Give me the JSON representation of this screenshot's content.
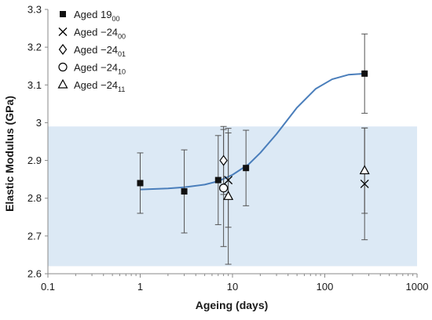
{
  "chart_data": {
    "type": "scatter",
    "xlabel": "Ageing (days)",
    "ylabel": "Elastic Modulus (GPa)",
    "xscale": "log",
    "xlim": [
      0.1,
      1000
    ],
    "ylim": [
      2.6,
      3.3
    ],
    "x_ticks": [
      "0.1",
      "1",
      "10",
      "100",
      "1000"
    ],
    "y_ticks": [
      "2.6",
      "2.7",
      "2.8",
      "2.9",
      "3",
      "3.1",
      "3.2",
      "3.3"
    ],
    "band": {
      "y_min": 2.62,
      "y_max": 2.99,
      "color": "#dce9f5"
    },
    "fit_curve": {
      "color": "#4a7ebb",
      "points": [
        [
          1,
          2.823
        ],
        [
          2,
          2.826
        ],
        [
          3,
          2.829
        ],
        [
          5,
          2.836
        ],
        [
          7,
          2.845
        ],
        [
          10,
          2.862
        ],
        [
          15,
          2.89
        ],
        [
          20,
          2.92
        ],
        [
          30,
          2.97
        ],
        [
          50,
          3.04
        ],
        [
          80,
          3.09
        ],
        [
          120,
          3.115
        ],
        [
          180,
          3.127
        ],
        [
          270,
          3.13
        ]
      ]
    },
    "legend_position": "top-left",
    "series": [
      {
        "name": "Aged 19",
        "subscript": "00",
        "marker": "square",
        "points": [
          {
            "x": 1,
            "y": 2.84,
            "err": 0.08
          },
          {
            "x": 3,
            "y": 2.818,
            "err": 0.11
          },
          {
            "x": 7,
            "y": 2.848,
            "err": 0.118
          },
          {
            "x": 14,
            "y": 2.88,
            "err": 0.1
          },
          {
            "x": 270,
            "y": 3.13,
            "err": 0.105
          }
        ]
      },
      {
        "name": "Aged −24",
        "subscript": "00",
        "marker": "x",
        "points": [
          {
            "x": 9,
            "y": 2.848,
            "err": 0.125
          },
          {
            "x": 270,
            "y": 2.838,
            "err": 0.148
          }
        ]
      },
      {
        "name": "Aged −24",
        "subscript": "01",
        "marker": "diamond",
        "points": [
          {
            "x": 8,
            "y": 2.9,
            "err": 0.09
          }
        ]
      },
      {
        "name": "Aged −24",
        "subscript": "10",
        "marker": "circle",
        "points": [
          {
            "x": 8,
            "y": 2.827,
            "err": 0.155
          }
        ]
      },
      {
        "name": "Aged −24",
        "subscript": "11",
        "marker": "triangle",
        "points": [
          {
            "x": 9,
            "y": 2.805,
            "err": 0.18
          },
          {
            "x": 270,
            "y": 2.873,
            "err": 0.113
          }
        ]
      }
    ]
  }
}
